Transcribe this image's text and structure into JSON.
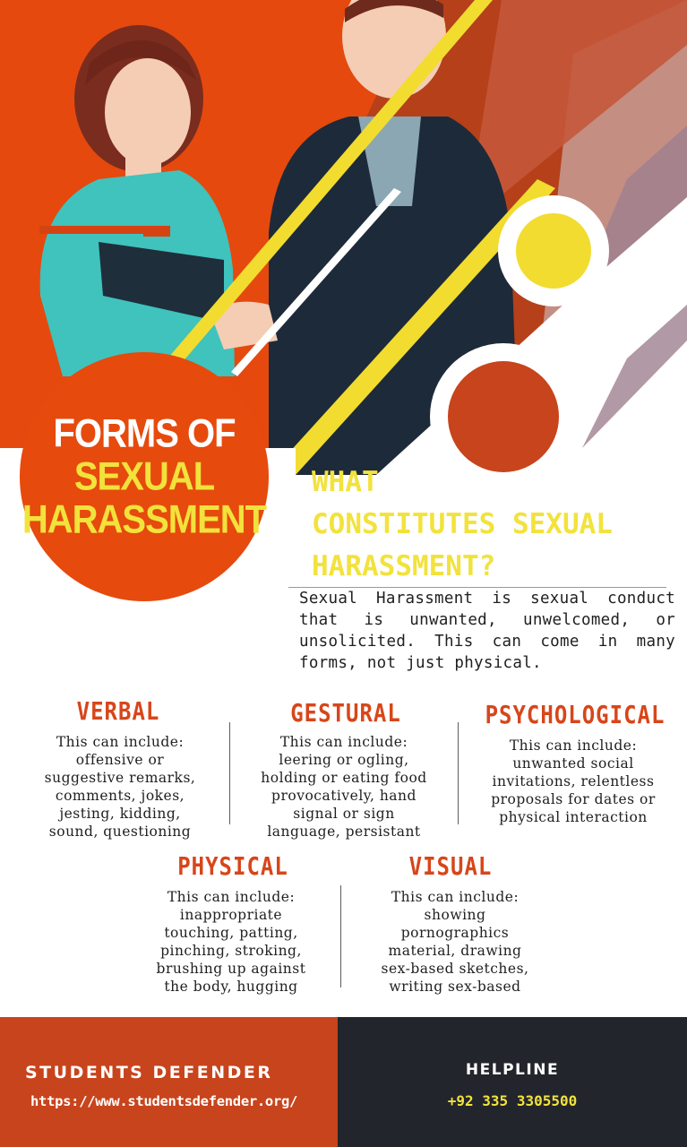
{
  "hero": {
    "title_line1": "FORMS OF",
    "title_line2": "SEXUAL",
    "title_line3": "HARASSMENT"
  },
  "definition": {
    "heading_line1": "WHAT",
    "heading_line2": "CONSTITUTES SEXUAL",
    "heading_line3": "HARASSMENT?",
    "text": "Sexual Harassment is sexual conduct that is unwanted, unwelcomed, or unsolicited. This can come in many forms, not just physical."
  },
  "forms": [
    {
      "title": "VERBAL",
      "lines": [
        "This can include:",
        "offensive or",
        "suggestive remarks,",
        "comments, jokes,",
        "jesting, kidding,",
        "sound, questioning"
      ]
    },
    {
      "title": "GESTURAL",
      "lines": [
        "This can include:",
        "leering or ogling,",
        "holding or eating food",
        "provocatively, hand",
        "signal or sign",
        "language, persistant"
      ]
    },
    {
      "title": "PSYCHOLOGICAL",
      "lines": [
        "This can include:",
        "unwanted social",
        "invitations, relentless",
        "proposals for dates or",
        "physical interaction"
      ]
    },
    {
      "title": "PHYSICAL",
      "lines": [
        "This can include:",
        "inappropriate",
        "touching, patting,",
        "pinching, stroking,",
        "brushing up against",
        "the body, hugging"
      ]
    },
    {
      "title": "VISUAL",
      "lines": [
        "This can include:",
        "showing",
        "pornographics",
        "material, drawing",
        "sex-based sketches,",
        "writing sex-based"
      ]
    }
  ],
  "footer": {
    "brand": "STUDENTS DEFENDER",
    "url": "https://www.studentsdefender.org/",
    "helpline_label": "HELPLINE",
    "helpline_number": "+92 335 3305500"
  },
  "colors": {
    "orange": "#e64a0d",
    "yellow": "#f2e23c",
    "dark": "#22252b",
    "footer_orange": "#c8441c"
  }
}
